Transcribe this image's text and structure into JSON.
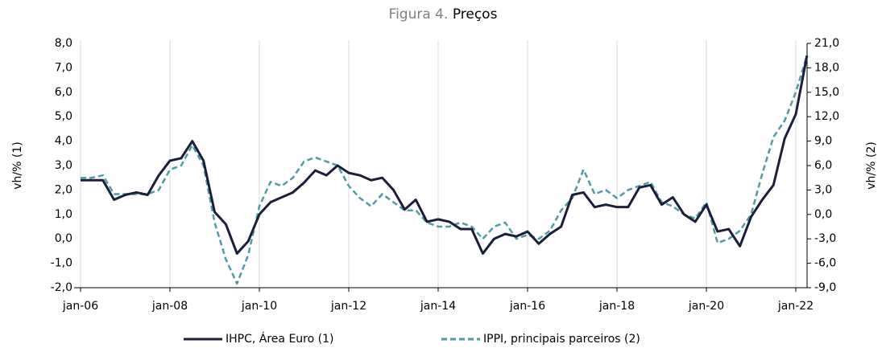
{
  "chart_data": {
    "type": "line",
    "figure_label": "Figura 4.",
    "title": "Preços",
    "ylabel": "vh/% (1)",
    "y2label": "vh/% (2)",
    "categories": [
      "jan-06",
      null,
      null,
      null,
      null,
      null,
      null,
      null,
      "jan-08",
      null,
      null,
      null,
      null,
      null,
      null,
      null,
      "jan-10",
      null,
      null,
      null,
      null,
      null,
      null,
      null,
      "jan-12",
      null,
      null,
      null,
      null,
      null,
      null,
      null,
      "jan-14",
      null,
      null,
      null,
      null,
      null,
      null,
      null,
      "jan-16",
      null,
      null,
      null,
      null,
      null,
      null,
      null,
      "jan-18",
      null,
      null,
      null,
      null,
      null,
      null,
      null,
      "jan-20",
      null,
      null,
      null,
      null,
      null,
      null,
      null,
      "jan-22",
      null
    ],
    "series": [
      {
        "name": "IHPC, Área Euro (1)",
        "color": "#1b1f3b",
        "style": "solid",
        "axis": "y",
        "values": [
          2.4,
          2.4,
          2.4,
          1.6,
          1.8,
          1.9,
          1.8,
          2.6,
          3.2,
          3.3,
          4.0,
          3.2,
          1.1,
          0.6,
          -0.6,
          -0.1,
          1.0,
          1.5,
          1.7,
          1.9,
          2.3,
          2.8,
          2.6,
          3.0,
          2.7,
          2.6,
          2.4,
          2.5,
          2.0,
          1.2,
          1.6,
          0.7,
          0.8,
          0.7,
          0.4,
          0.4,
          -0.6,
          0.0,
          0.2,
          0.1,
          0.3,
          -0.2,
          0.2,
          0.5,
          1.8,
          1.9,
          1.3,
          1.4,
          1.3,
          1.3,
          2.1,
          2.2,
          1.4,
          1.7,
          1.0,
          0.7,
          1.4,
          0.3,
          0.4,
          -0.3,
          0.9,
          1.6,
          2.2,
          4.1,
          5.1,
          7.5
        ]
      },
      {
        "name": "IPPI, principais parceiros (2)",
        "color": "#4e9ca6",
        "style": "dashed",
        "axis": "y2",
        "values": [
          4.5,
          4.5,
          4.8,
          2.5,
          2.5,
          2.5,
          2.5,
          3.0,
          5.5,
          6.0,
          8.5,
          6.0,
          -1.0,
          -5.5,
          -8.5,
          -5.0,
          1.0,
          4.0,
          3.5,
          4.5,
          6.5,
          7.0,
          6.5,
          6.0,
          3.5,
          2.0,
          1.0,
          2.5,
          1.5,
          0.5,
          0.5,
          -1.0,
          -1.5,
          -1.5,
          -1.0,
          -1.5,
          -3.0,
          -1.5,
          -1.0,
          -3.0,
          -2.5,
          -3.0,
          -2.0,
          0.5,
          2.0,
          5.5,
          2.5,
          3.0,
          2.0,
          3.0,
          3.5,
          4.0,
          1.5,
          1.0,
          0.0,
          -0.5,
          1.5,
          -3.5,
          -3.0,
          -2.0,
          0.0,
          5.0,
          9.5,
          11.5,
          15.0,
          19.5
        ]
      }
    ],
    "ylim": [
      -2,
      8
    ],
    "yticks": [
      {
        "value": -2,
        "label": "-2,0"
      },
      {
        "value": -1,
        "label": "-1,0"
      },
      {
        "value": 0,
        "label": "0,0"
      },
      {
        "value": 1,
        "label": "1,0"
      },
      {
        "value": 2,
        "label": "2,0"
      },
      {
        "value": 3,
        "label": "3,0"
      },
      {
        "value": 4,
        "label": "4,0"
      },
      {
        "value": 5,
        "label": "5,0"
      },
      {
        "value": 6,
        "label": "6,0"
      },
      {
        "value": 7,
        "label": "7,0"
      },
      {
        "value": 8,
        "label": "8,0"
      }
    ],
    "y2lim": [
      -9,
      21
    ],
    "y2ticks": [
      {
        "value": -9,
        "label": "-9,0"
      },
      {
        "value": -6,
        "label": "-6,0"
      },
      {
        "value": -3,
        "label": "-3,0"
      },
      {
        "value": 0,
        "label": "0,0"
      },
      {
        "value": 3,
        "label": "3,0"
      },
      {
        "value": 6,
        "label": "6,0"
      },
      {
        "value": 9,
        "label": "9,0"
      },
      {
        "value": 12,
        "label": "12,0"
      },
      {
        "value": 15,
        "label": "15,0"
      },
      {
        "value": 18,
        "label": "18,0"
      },
      {
        "value": 21,
        "label": "21,0"
      }
    ],
    "grid": true
  }
}
